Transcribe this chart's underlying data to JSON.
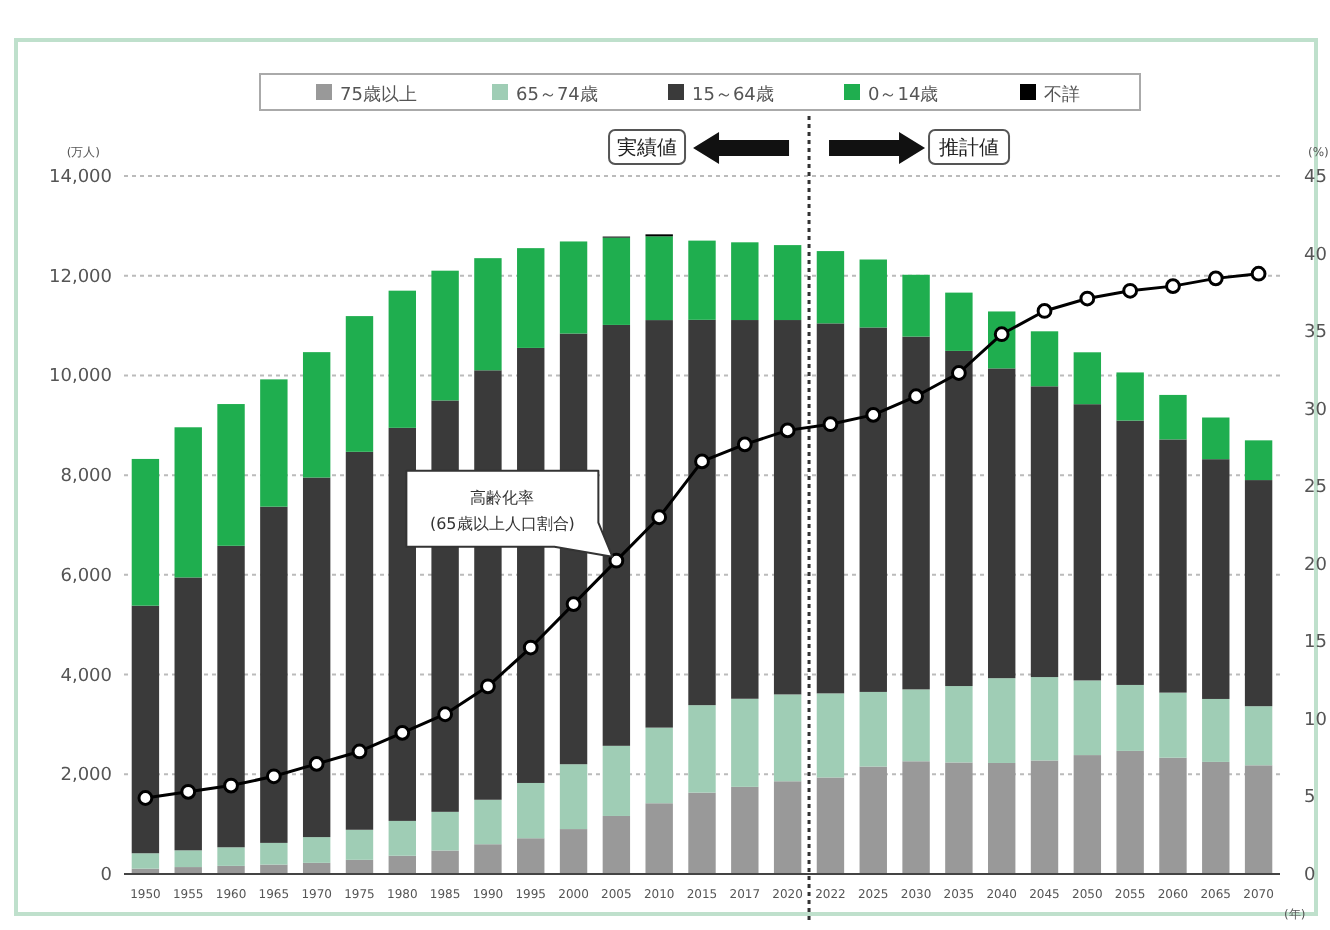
{
  "chart_data": {
    "type": "bar",
    "stacked": true,
    "categories": [
      "1950",
      "1955",
      "1960",
      "1965",
      "1970",
      "1975",
      "1980",
      "1985",
      "1990",
      "1995",
      "2000",
      "2005",
      "2010",
      "2015",
      "2017",
      "2020",
      "2022",
      "2025",
      "2030",
      "2035",
      "2040",
      "2045",
      "2050",
      "2055",
      "2060",
      "2065",
      "2070"
    ],
    "series": [
      {
        "name": "75歳以上",
        "color": "#999999",
        "values": [
          107,
          139,
          163,
          189,
          224,
          284,
          366,
          471,
          597,
          717,
          901,
          1164,
          1419,
          1632,
          1748,
          1860,
          1936,
          2155,
          2261,
          2237,
          2227,
          2277,
          2385,
          2469,
          2333,
          2248,
          2180
        ]
      },
      {
        "name": "65～74歳",
        "color": "#9fcdb5",
        "values": [
          309,
          336,
          373,
          435,
          516,
          603,
          699,
          776,
          892,
          1109,
          1301,
          1407,
          1517,
          1755,
          1767,
          1742,
          1687,
          1497,
          1442,
          1533,
          1701,
          1673,
          1498,
          1323,
          1305,
          1263,
          1186
        ]
      },
      {
        "name": "15～64歳",
        "color": "#3a3a3a",
        "values": [
          4966,
          5473,
          6047,
          6744,
          7212,
          7581,
          7884,
          8251,
          8614,
          8726,
          8638,
          8442,
          8174,
          7728,
          7596,
          7509,
          7421,
          7310,
          7076,
          6722,
          6213,
          5832,
          5540,
          5302,
          5078,
          4809,
          4535
        ]
      },
      {
        "name": "0～14歳",
        "color": "#1fae4f",
        "values": [
          2943,
          3012,
          2843,
          2553,
          2515,
          2722,
          2751,
          2603,
          2249,
          2001,
          1847,
          1752,
          1680,
          1589,
          1559,
          1503,
          1450,
          1363,
          1240,
          1169,
          1142,
          1103,
          1041,
          966,
          893,
          836,
          797
        ]
      },
      {
        "name": "不詳",
        "color": "#000000",
        "values": [
          null,
          null,
          null,
          null,
          null,
          null,
          null,
          null,
          null,
          null,
          null,
          20,
          40,
          null,
          null,
          null,
          null,
          null,
          null,
          null,
          null,
          null,
          null,
          null,
          null,
          null,
          null
        ]
      },
      {
        "type": "line",
        "axis": "y2",
        "color": "#000000",
        "marker": "circle",
        "values": [
          4.9,
          5.3,
          5.7,
          6.3,
          7.1,
          7.9,
          9.1,
          10.3,
          12.1,
          14.6,
          17.4,
          20.2,
          23.0,
          26.6,
          27.7,
          28.6,
          29.0,
          29.6,
          30.8,
          32.3,
          34.8,
          36.3,
          37.1,
          37.6,
          37.9,
          38.4,
          38.7
        ]
      }
    ],
    "ylim": [
      0,
      14000
    ],
    "yticks": [
      {
        "value": 0,
        "label": "0"
      },
      {
        "value": 2000,
        "label": "2,000"
      },
      {
        "value": 4000,
        "label": "4,000"
      },
      {
        "value": 6000,
        "label": "6,000"
      },
      {
        "value": 8000,
        "label": "8,000"
      },
      {
        "value": 10000,
        "label": "10,000"
      },
      {
        "value": 12000,
        "label": "12,000"
      },
      {
        "value": 14000,
        "label": "14,000"
      }
    ],
    "y2lim": [
      0,
      45
    ],
    "y2ticks": [
      0,
      5,
      10,
      15,
      20,
      25,
      30,
      35,
      40,
      45
    ],
    "ylabel": "(万人)",
    "y2label": "(%)",
    "xlabel": "(年)",
    "grid": "y",
    "legend": "top",
    "ref_lines": [
      {
        "axis": "x",
        "value": "2022",
        "line_style": "dotted",
        "color": "#333333"
      }
    ],
    "annotations": [
      "実績値",
      "推計値",
      "高齢化率\n(65歳以上人口割合)"
    ]
  }
}
